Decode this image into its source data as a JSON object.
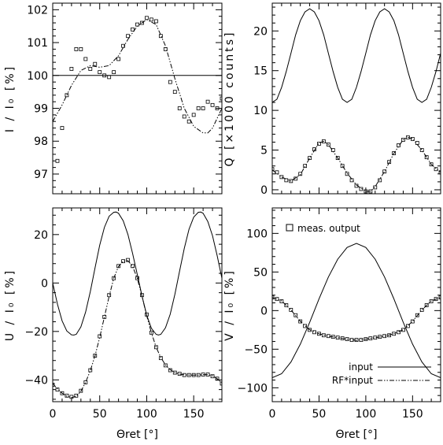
{
  "chart_data": [
    {
      "type": "line",
      "panel": "top-left",
      "xlabel": "",
      "ylabel": "I / I₀ [%]",
      "xlim": [
        0,
        180
      ],
      "ylim": [
        96.4,
        102.2
      ],
      "xticks": [
        0,
        50,
        100,
        150
      ],
      "yticks": [
        97,
        98,
        99,
        100,
        101,
        102
      ],
      "xtick_labels_visible": false,
      "series": [
        {
          "style": "solid",
          "x": [
            0,
            180
          ],
          "y": [
            100,
            100
          ]
        },
        {
          "style": "dash-dot",
          "x": [
            0,
            10,
            20,
            30,
            40,
            50,
            60,
            70,
            80,
            90,
            100,
            110,
            120,
            130,
            140,
            150,
            160,
            165,
            170,
            180
          ],
          "y": [
            98.6,
            99.1,
            99.7,
            100.15,
            100.3,
            100.25,
            100.3,
            100.6,
            101.1,
            101.5,
            101.7,
            101.55,
            100.9,
            99.9,
            99.0,
            98.45,
            98.25,
            98.25,
            98.4,
            99.0
          ]
        },
        {
          "style": "markers",
          "marker": "square",
          "x": [
            5,
            10,
            15,
            20,
            25,
            30,
            35,
            40,
            45,
            50,
            55,
            60,
            65,
            70,
            75,
            80,
            85,
            90,
            95,
            100,
            105,
            110,
            115,
            120,
            125,
            130,
            135,
            140,
            145,
            150,
            155,
            160,
            165,
            170,
            175,
            180
          ],
          "y": [
            97.4,
            98.4,
            99.4,
            100.2,
            100.8,
            100.8,
            100.5,
            100.2,
            100.35,
            100.1,
            100.0,
            99.95,
            100.1,
            100.5,
            100.9,
            101.2,
            101.4,
            101.55,
            101.6,
            101.75,
            101.7,
            101.65,
            101.2,
            100.8,
            99.8,
            99.5,
            99.0,
            98.75,
            98.6,
            98.8,
            99.0,
            99.0,
            99.2,
            99.1,
            99.0,
            99.3
          ]
        }
      ]
    },
    {
      "type": "line",
      "panel": "top-right",
      "xlabel": "",
      "ylabel": "Q [×1000 counts]",
      "xlim": [
        0,
        180
      ],
      "ylim": [
        -0.5,
        23.5
      ],
      "xticks": [
        0,
        50,
        100,
        150
      ],
      "yticks": [
        0,
        5,
        10,
        15,
        20
      ],
      "xtick_labels_visible": false,
      "series": [
        {
          "style": "solid",
          "x": [
            0,
            5,
            10,
            15,
            20,
            25,
            30,
            35,
            40,
            45,
            50,
            55,
            60,
            65,
            70,
            75,
            80,
            85,
            90,
            95,
            100,
            105,
            110,
            115,
            120,
            125,
            130,
            135,
            140,
            145,
            150,
            155,
            160,
            165,
            170,
            175,
            180
          ],
          "y": [
            11.0,
            11.4,
            12.9,
            14.9,
            17.2,
            19.5,
            21.3,
            22.4,
            22.8,
            22.4,
            21.3,
            19.5,
            17.2,
            14.9,
            12.9,
            11.4,
            11.0,
            11.4,
            12.9,
            14.9,
            17.2,
            19.5,
            21.3,
            22.4,
            22.8,
            22.4,
            21.3,
            19.5,
            17.2,
            14.9,
            12.9,
            11.4,
            11.0,
            11.4,
            12.9,
            14.9,
            17.2
          ]
        },
        {
          "style": "dash-dot",
          "x": [
            0,
            10,
            20,
            30,
            40,
            50,
            55,
            60,
            70,
            80,
            90,
            100,
            105,
            110,
            120,
            130,
            140,
            145,
            150,
            160,
            170,
            180
          ],
          "y": [
            2.5,
            1.6,
            1.1,
            1.9,
            4.0,
            5.9,
            6.1,
            5.7,
            4.0,
            2.1,
            0.6,
            -0.2,
            -0.2,
            0.4,
            2.3,
            4.6,
            6.3,
            6.6,
            6.4,
            5.0,
            3.2,
            2.2
          ]
        },
        {
          "style": "markers",
          "marker": "square",
          "x": [
            0,
            5,
            10,
            15,
            20,
            25,
            30,
            35,
            40,
            45,
            50,
            55,
            60,
            65,
            70,
            75,
            80,
            85,
            90,
            95,
            100,
            105,
            110,
            115,
            120,
            125,
            130,
            135,
            140,
            145,
            150,
            155,
            160,
            165,
            170,
            175,
            180
          ],
          "y": [
            2.6,
            2.2,
            1.6,
            1.2,
            1.1,
            1.4,
            2.0,
            3.0,
            4.0,
            5.1,
            5.8,
            6.1,
            5.7,
            5.0,
            4.0,
            3.0,
            2.0,
            1.2,
            0.5,
            0.1,
            -0.2,
            -0.2,
            0.3,
            1.2,
            2.3,
            3.5,
            4.6,
            5.6,
            6.3,
            6.6,
            6.4,
            5.9,
            5.0,
            4.1,
            3.2,
            2.6,
            2.2
          ]
        }
      ]
    },
    {
      "type": "line",
      "panel": "bottom-left",
      "xlabel": "Θret [°]",
      "ylabel": "U / I₀ [%]",
      "xlim": [
        0,
        180
      ],
      "ylim": [
        -49,
        31
      ],
      "xticks": [
        0,
        50,
        100,
        150
      ],
      "yticks": [
        -40,
        -20,
        0,
        20
      ],
      "xtick_labels_visible": true,
      "series": [
        {
          "style": "solid",
          "x": [
            0,
            5,
            10,
            15,
            20,
            22.5,
            25,
            30,
            35,
            40,
            45,
            50,
            55,
            60,
            65,
            67.5,
            70,
            75,
            80,
            85,
            90,
            95,
            100,
            105,
            110,
            112.5,
            115,
            120,
            125,
            130,
            135,
            140,
            145,
            150,
            155,
            157.5,
            160,
            165,
            170,
            175,
            180
          ],
          "y": [
            0,
            -8.7,
            -15.6,
            -19.8,
            -21.4,
            -21.5,
            -21.2,
            -18.1,
            -12.0,
            -3.5,
            6.3,
            15.6,
            23.0,
            27.6,
            29.2,
            29.3,
            28.8,
            25.7,
            20.0,
            12.2,
            3.5,
            -5.4,
            -13.2,
            -18.7,
            -21.2,
            -21.5,
            -21.2,
            -18.5,
            -12.9,
            -4.6,
            5.0,
            14.3,
            22.2,
            27.2,
            29.2,
            29.3,
            28.8,
            25.4,
            19.5,
            11.3,
            2.0
          ]
        },
        {
          "style": "dash-dot",
          "x": [
            0,
            5,
            10,
            15,
            20,
            25,
            30,
            35,
            40,
            45,
            50,
            55,
            60,
            65,
            70,
            75,
            80,
            85,
            90,
            95,
            100,
            105,
            110,
            115,
            120,
            125,
            130,
            135,
            140,
            145,
            150,
            155,
            160,
            165,
            170,
            175,
            180
          ],
          "y": [
            -41.5,
            -43.7,
            -45.5,
            -46.8,
            -47.3,
            -46.8,
            -44.7,
            -41.0,
            -36.2,
            -30.0,
            -22.5,
            -14.0,
            -5.5,
            2.0,
            6.8,
            9.0,
            9.2,
            6.9,
            1.9,
            -5.5,
            -13.5,
            -20.5,
            -26.5,
            -30.8,
            -33.8,
            -35.8,
            -37.0,
            -37.6,
            -37.9,
            -38.0,
            -38.0,
            -38.0,
            -37.8,
            -37.8,
            -38.3,
            -39.5,
            -41.3
          ]
        },
        {
          "style": "markers",
          "marker": "square",
          "x": [
            0,
            5,
            10,
            15,
            20,
            25,
            30,
            35,
            40,
            45,
            50,
            55,
            60,
            65,
            70,
            75,
            80,
            85,
            90,
            95,
            100,
            105,
            110,
            115,
            120,
            125,
            130,
            135,
            140,
            145,
            150,
            155,
            160,
            165,
            170,
            175,
            180
          ],
          "y": [
            -42,
            -44,
            -45.5,
            -46.5,
            -47,
            -46.5,
            -44.5,
            -41,
            -36,
            -30,
            -22,
            -14,
            -5,
            2,
            7,
            9,
            9.5,
            7,
            2,
            -5,
            -13,
            -20.5,
            -26.5,
            -31,
            -34,
            -36,
            -37,
            -37.5,
            -38,
            -38,
            -38,
            -38,
            -37.8,
            -37.8,
            -38.5,
            -39.5,
            -41.5
          ]
        }
      ]
    },
    {
      "type": "line",
      "panel": "bottom-right",
      "xlabel": "Θret [°]",
      "ylabel": "V / I₀ [%]",
      "xlim": [
        0,
        180
      ],
      "ylim": [
        -118,
        133
      ],
      "xticks": [
        0,
        50,
        100,
        150
      ],
      "yticks": [
        -100,
        -50,
        0,
        50,
        100
      ],
      "xtick_labels_visible": true,
      "legend": {
        "placement": "bottom-right",
        "entries": [
          {
            "label": "input",
            "style": "solid"
          },
          {
            "label": "RF*input",
            "style": "dash-dot"
          }
        ]
      },
      "annotation": {
        "marker": "square",
        "text": "meas. output",
        "placement": "top-left"
      },
      "series": [
        {
          "name": "input",
          "style": "solid",
          "x": [
            0,
            10,
            20,
            30,
            40,
            50,
            60,
            70,
            80,
            90,
            100,
            110,
            120,
            130,
            140,
            150,
            160,
            170,
            180
          ],
          "y": [
            -87.0,
            -81.8,
            -66.6,
            -43.4,
            -15.2,
            15.1,
            43.4,
            66.6,
            81.8,
            87.0,
            81.8,
            66.6,
            43.5,
            15.2,
            -15.1,
            -43.4,
            -66.6,
            -81.8,
            -87.0
          ]
        },
        {
          "name": "RF*input",
          "style": "dash-dot",
          "x": [
            0,
            10,
            20,
            30,
            40,
            50,
            60,
            70,
            80,
            90,
            100,
            110,
            120,
            130,
            140,
            150,
            160,
            170,
            180
          ],
          "y": [
            17.0,
            12.6,
            0.8,
            -13.9,
            -24.8,
            -30.0,
            -33.2,
            -35.0,
            -37.0,
            -38.5,
            -37.0,
            -35.0,
            -33.2,
            -30.0,
            -24.8,
            -13.9,
            0.8,
            12.6,
            17.0
          ]
        },
        {
          "style": "markers",
          "marker": "square",
          "x": [
            0,
            5,
            10,
            15,
            20,
            25,
            30,
            35,
            40,
            45,
            50,
            55,
            60,
            65,
            70,
            75,
            80,
            85,
            90,
            95,
            100,
            105,
            110,
            115,
            120,
            125,
            130,
            135,
            140,
            145,
            150,
            155,
            160,
            165,
            170,
            175,
            180
          ],
          "y": [
            17,
            15,
            12,
            7,
            1,
            -6,
            -14,
            -20,
            -25,
            -28,
            -30,
            -32,
            -33,
            -34,
            -35,
            -36,
            -37,
            -38,
            -38,
            -38,
            -37,
            -36,
            -35,
            -34,
            -33,
            -32,
            -30,
            -28,
            -25,
            -20,
            -14,
            -6,
            1,
            7,
            12,
            15,
            17
          ]
        }
      ]
    }
  ]
}
